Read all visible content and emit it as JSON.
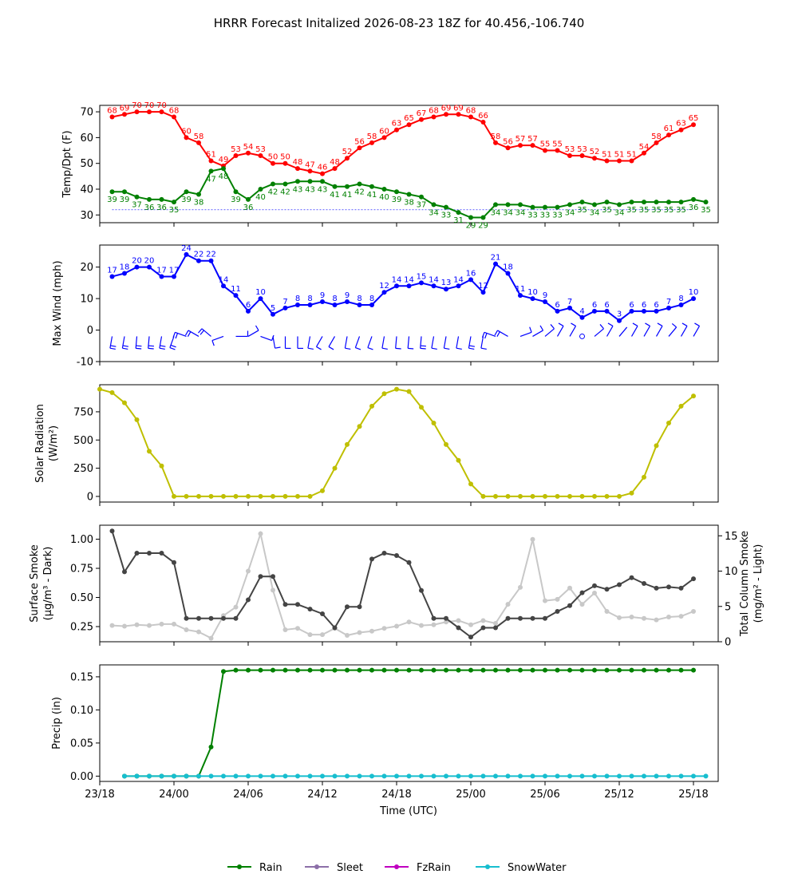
{
  "title": "HRRR Forecast Initalized 2026-08-23 18Z for 40.456,-106.740",
  "x_ticks": [
    "23/18",
    "24/00",
    "24/06",
    "24/12",
    "24/18",
    "25/00",
    "25/06",
    "25/12",
    "25/18"
  ],
  "x_label": "Time (UTC)",
  "legend": [
    {
      "label": "Rain",
      "color": "#008000"
    },
    {
      "label": "Sleet",
      "color": "#8c6fa8"
    },
    {
      "label": "FzRain",
      "color": "#c000c0"
    },
    {
      "label": "SnowWater",
      "color": "#17becf"
    }
  ],
  "chart_data": [
    {
      "type": "line",
      "ylabel": "Temp/Dpt (F)",
      "x_hours": [
        0,
        1,
        2,
        3,
        4,
        5,
        6,
        7,
        8,
        9,
        10,
        11,
        12,
        13,
        14,
        15,
        16,
        17,
        18,
        19,
        20,
        21,
        22,
        23,
        24,
        25,
        26,
        27,
        28,
        29,
        30,
        31,
        32,
        33,
        34,
        35,
        36,
        37,
        38,
        39,
        40,
        41,
        42,
        43,
        44,
        45,
        46,
        47,
        48
      ],
      "ylim": [
        27,
        72.5
      ],
      "yticks": [
        30,
        40,
        50,
        60,
        70
      ],
      "series": [
        {
          "color": "#ff0000",
          "values": [
            68,
            69,
            70,
            70,
            70,
            68,
            60,
            58,
            51,
            49,
            53,
            54,
            53,
            50,
            50,
            48,
            47,
            46,
            48,
            52,
            56,
            58,
            60,
            63,
            65,
            67,
            68,
            69,
            69,
            68,
            66,
            58,
            56,
            57,
            57,
            55,
            55,
            53,
            53,
            52,
            51,
            51,
            51,
            54,
            58,
            61,
            63,
            65
          ]
        },
        {
          "color": "#008000",
          "values": [
            39,
            39,
            37,
            36,
            36,
            35,
            39,
            38,
            47,
            48,
            39,
            36,
            40,
            42,
            42,
            43,
            43,
            43,
            41,
            41,
            42,
            41,
            40,
            39,
            38,
            37,
            34,
            33,
            31,
            29,
            29,
            34,
            34,
            34,
            33,
            33,
            33,
            34,
            35,
            34,
            35,
            34,
            35,
            35,
            35,
            35,
            35,
            36,
            35
          ]
        }
      ],
      "reference_line": 32
    },
    {
      "type": "line",
      "ylabel": "Max Wind (mph)",
      "ylim": [
        -10,
        27
      ],
      "yticks": [
        -10,
        0,
        10,
        20
      ],
      "series": [
        {
          "color": "#0000ff",
          "values": [
            17,
            18,
            20,
            20,
            17,
            17,
            24,
            22,
            22,
            14,
            11,
            6,
            10,
            5,
            7,
            8,
            8,
            9,
            8,
            9,
            8,
            8,
            12,
            14,
            14,
            15,
            14,
            13,
            14,
            16,
            12,
            21,
            18,
            11,
            10,
            9,
            6,
            7,
            4,
            6,
            6,
            3,
            6,
            6,
            6,
            7,
            8,
            10
          ]
        }
      ],
      "wind_barbs": "row at y=-2"
    },
    {
      "type": "line",
      "ylabel": "Solar Radiation (W/m2)",
      "ylim": [
        -50,
        990
      ],
      "yticks": [
        0,
        250,
        500,
        750
      ],
      "series": [
        {
          "color": "#bfbf00",
          "values": [
            950,
            920,
            830,
            680,
            400,
            270,
            0,
            0,
            0,
            0,
            0,
            0,
            0,
            0,
            0,
            0,
            0,
            0,
            50,
            250,
            460,
            620,
            800,
            910,
            950,
            930,
            790,
            650,
            460,
            320,
            110,
            0,
            0,
            0,
            0,
            0,
            0,
            0,
            0,
            0,
            0,
            0,
            0,
            30,
            170,
            450,
            650,
            800,
            890
          ]
        }
      ]
    },
    {
      "type": "line",
      "ylabel": "Surface Smoke (µg/m3 - Dark)",
      "ylabel_right": "Total Column Smoke (mg/m2 - Light)",
      "ylim": [
        0.12,
        1.12
      ],
      "yticks": [
        0.25,
        0.5,
        0.75,
        1.0
      ],
      "ylim_right": [
        0,
        16.5
      ],
      "yticks_right": [
        0,
        5,
        10,
        15
      ],
      "series": [
        {
          "name": "",
          "color": "#444444",
          "values": [
            1.07,
            0.72,
            0.88,
            0.88,
            0.88,
            0.8,
            0.32,
            0.32,
            0.32,
            0.32,
            0.32,
            0.48,
            0.68,
            0.68,
            0.44,
            0.44,
            0.4,
            0.36,
            0.24,
            0.42,
            0.42,
            0.83,
            0.88,
            0.86,
            0.8,
            0.56,
            0.32,
            0.32,
            0.24,
            0.16,
            0.24,
            0.24,
            0.32,
            0.32,
            0.32,
            0.32,
            0.38,
            0.43,
            0.54,
            0.6,
            0.57,
            0.61,
            0.67,
            0.62,
            0.58,
            0.59,
            0.58,
            0.66
          ]
        },
        {
          "name": "",
          "color": "#c8c8c8",
          "axis": "right",
          "values": [
            2.3,
            2.2,
            2.4,
            2.3,
            2.5,
            2.5,
            1.7,
            1.4,
            0.5,
            3.7,
            4.9,
            10,
            15.3,
            7.3,
            1.7,
            1.9,
            1,
            1,
            1.9,
            0.9,
            1.3,
            1.5,
            1.9,
            2.2,
            2.8,
            2.3,
            2.4,
            2.8,
            3,
            2.4,
            3,
            2.6,
            5.3,
            7.7,
            14.5,
            5.8,
            6,
            7.6,
            5.3,
            6.9,
            4.3,
            3.4,
            3.5,
            3.3,
            3.1,
            3.5,
            3.6,
            4.3
          ]
        }
      ]
    },
    {
      "type": "line",
      "ylabel": "Precip (in)",
      "ylim": [
        -0.008,
        0.168
      ],
      "yticks": [
        0.0,
        0.05,
        0.1,
        0.15
      ],
      "series": [
        {
          "name": "Rain",
          "color": "#008000",
          "values": [
            0,
            0,
            0,
            0,
            0,
            0,
            0,
            0.044,
            0.158,
            0.16,
            0.16,
            0.16,
            0.16,
            0.16,
            0.16,
            0.16,
            0.16,
            0.16,
            0.16,
            0.16,
            0.16,
            0.16,
            0.16,
            0.16,
            0.16,
            0.16,
            0.16,
            0.16,
            0.16,
            0.16,
            0.16,
            0.16,
            0.16,
            0.16,
            0.16,
            0.16,
            0.16,
            0.16,
            0.16,
            0.16,
            0.16,
            0.16,
            0.16,
            0.16,
            0.16,
            0.16,
            0.16
          ]
        },
        {
          "name": "SnowWater",
          "color": "#17becf",
          "values": [
            0,
            0,
            0,
            0,
            0,
            0,
            0,
            0,
            0,
            0,
            0,
            0,
            0,
            0,
            0,
            0,
            0,
            0,
            0,
            0,
            0,
            0,
            0,
            0,
            0,
            0,
            0,
            0,
            0,
            0,
            0,
            0,
            0,
            0,
            0,
            0,
            0,
            0,
            0,
            0,
            0,
            0,
            0,
            0,
            0,
            0,
            0,
            0
          ]
        }
      ]
    }
  ]
}
